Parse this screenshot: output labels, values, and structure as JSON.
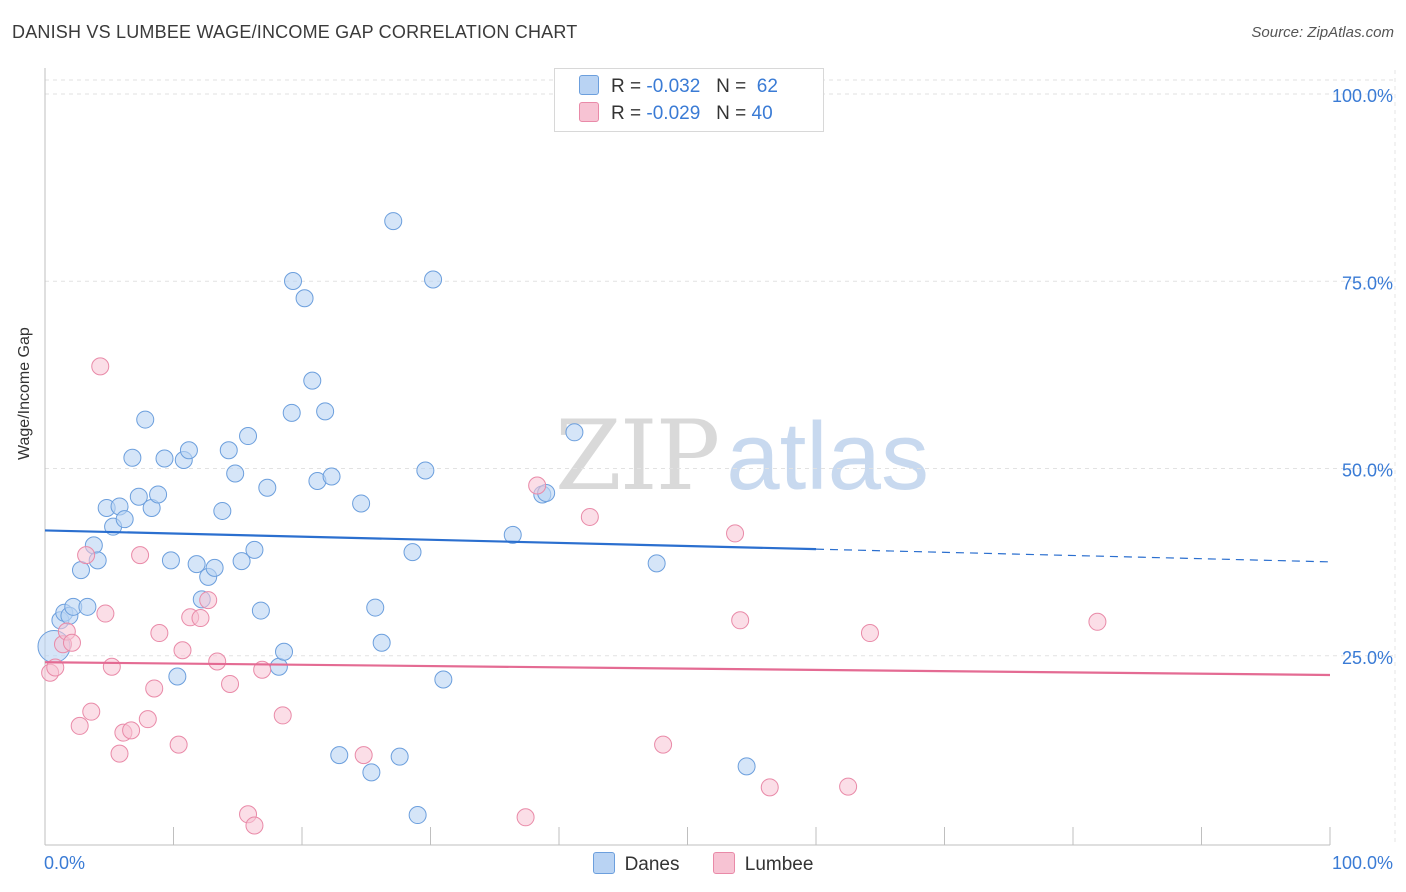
{
  "header": {
    "title": "DANISH VS LUMBEE WAGE/INCOME GAP CORRELATION CHART",
    "source_prefix": "Source: ",
    "source_name": "ZipAtlas.com"
  },
  "watermark": {
    "zip": "ZIP",
    "atlas": "atlas"
  },
  "legend": {
    "r_label": "R =",
    "n_label": "N =",
    "danes": {
      "r": "-0.032",
      "n": "62"
    },
    "lumbee": {
      "r": "-0.029",
      "n": "40"
    }
  },
  "colors": {
    "danes_fill": "#b9d3f3",
    "danes_stroke": "#6c9fdd",
    "danes_line": "#2b6fcf",
    "lumbee_fill": "#f7c3d3",
    "lumbee_stroke": "#e98aa8",
    "lumbee_line": "#e46b93",
    "tick_label": "#3a7bd5"
  },
  "chart_data": {
    "type": "scatter",
    "title": "DANISH VS LUMBEE WAGE/INCOME GAP CORRELATION CHART",
    "xlabel": "",
    "ylabel": "Wage/Income Gap",
    "xlim": [
      0,
      100
    ],
    "ylim": [
      0,
      100
    ],
    "x_tick_labels": [
      "0.0%",
      "100.0%"
    ],
    "y_ticks": [
      25,
      50,
      75,
      100
    ],
    "y_tick_labels": [
      "25.0%",
      "50.0%",
      "75.0%",
      "100.0%"
    ],
    "grid": true,
    "legend_position": "top-center",
    "series": [
      {
        "name": "Danes",
        "r": -0.032,
        "n": 62,
        "trend": {
          "x0": 0,
          "y0": 42.0,
          "x1": 60,
          "y1": 39.5,
          "x_dash_end": 100,
          "y_dash_end": 37.8
        },
        "points": [
          [
            0.7,
            26.5
          ],
          [
            1.2,
            30
          ],
          [
            1.5,
            31
          ],
          [
            1.9,
            30.6
          ],
          [
            2.2,
            31.8
          ],
          [
            2.8,
            36.7
          ],
          [
            3.3,
            31.8
          ],
          [
            3.8,
            40
          ],
          [
            4.1,
            38
          ],
          [
            4.8,
            45
          ],
          [
            5.3,
            42.5
          ],
          [
            5.8,
            45.2
          ],
          [
            6.2,
            43.5
          ],
          [
            6.8,
            51.7
          ],
          [
            7.3,
            46.5
          ],
          [
            7.8,
            56.8
          ],
          [
            8.3,
            45
          ],
          [
            8.8,
            46.8
          ],
          [
            9.3,
            51.6
          ],
          [
            9.8,
            38
          ],
          [
            10.3,
            22.5
          ],
          [
            10.8,
            51.4
          ],
          [
            11.2,
            52.7
          ],
          [
            11.8,
            37.5
          ],
          [
            12.2,
            32.8
          ],
          [
            12.7,
            35.8
          ],
          [
            13.2,
            37
          ],
          [
            13.8,
            44.6
          ],
          [
            14.3,
            52.7
          ],
          [
            14.8,
            49.6
          ],
          [
            15.3,
            37.9
          ],
          [
            15.8,
            54.6
          ],
          [
            16.3,
            39.4
          ],
          [
            16.8,
            31.3
          ],
          [
            17.3,
            47.7
          ],
          [
            18.2,
            23.8
          ],
          [
            18.6,
            25.8
          ],
          [
            19.2,
            57.7
          ],
          [
            19.3,
            75.3
          ],
          [
            20.2,
            73
          ],
          [
            20.8,
            62
          ],
          [
            21.2,
            48.6
          ],
          [
            21.8,
            57.9
          ],
          [
            22.3,
            49.2
          ],
          [
            22.9,
            12
          ],
          [
            24.6,
            45.6
          ],
          [
            25.4,
            9.7
          ],
          [
            25.7,
            31.7
          ],
          [
            26.2,
            27
          ],
          [
            27.1,
            83.3
          ],
          [
            27.6,
            11.8
          ],
          [
            28.6,
            39.1
          ],
          [
            29.0,
            4
          ],
          [
            29.6,
            50
          ],
          [
            30.2,
            75.5
          ],
          [
            31.0,
            22.1
          ],
          [
            36.4,
            41.4
          ],
          [
            38.7,
            46.8
          ],
          [
            39.0,
            47.0
          ],
          [
            41.2,
            55.1
          ],
          [
            47.6,
            37.6
          ],
          [
            54.6,
            10.5
          ]
        ]
      },
      {
        "name": "Lumbee",
        "r": -0.029,
        "n": 40,
        "trend": {
          "x0": 0,
          "y0": 24.4,
          "x1": 100,
          "y1": 22.7
        },
        "points": [
          [
            0.4,
            23
          ],
          [
            0.8,
            23.7
          ],
          [
            1.4,
            26.8
          ],
          [
            1.7,
            28.5
          ],
          [
            2.1,
            27
          ],
          [
            2.7,
            15.9
          ],
          [
            3.2,
            38.7
          ],
          [
            3.6,
            17.8
          ],
          [
            4.3,
            63.9
          ],
          [
            4.7,
            30.9
          ],
          [
            5.2,
            23.8
          ],
          [
            5.8,
            12.2
          ],
          [
            6.1,
            15
          ],
          [
            6.7,
            15.3
          ],
          [
            7.4,
            38.7
          ],
          [
            8.0,
            16.8
          ],
          [
            8.5,
            20.9
          ],
          [
            8.9,
            28.3
          ],
          [
            10.4,
            13.4
          ],
          [
            10.7,
            26
          ],
          [
            11.3,
            30.4
          ],
          [
            12.1,
            30.3
          ],
          [
            12.7,
            32.7
          ],
          [
            13.4,
            24.5
          ],
          [
            14.4,
            21.5
          ],
          [
            15.8,
            4.1
          ],
          [
            16.3,
            2.6
          ],
          [
            16.9,
            23.4
          ],
          [
            18.5,
            17.3
          ],
          [
            24.8,
            12
          ],
          [
            37.4,
            3.7
          ],
          [
            38.3,
            48
          ],
          [
            42.4,
            43.8
          ],
          [
            48.1,
            13.4
          ],
          [
            53.7,
            41.6
          ],
          [
            54.1,
            30
          ],
          [
            56.4,
            7.7
          ],
          [
            62.5,
            7.8
          ],
          [
            64.2,
            28.3
          ],
          [
            81.9,
            29.8
          ]
        ]
      }
    ]
  }
}
